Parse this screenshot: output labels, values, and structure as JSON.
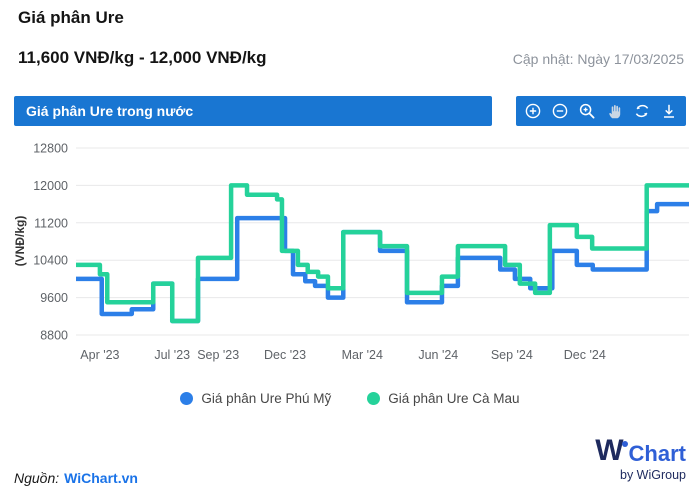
{
  "page": {
    "title": "Giá phân Ure",
    "price_range": "11,600 VNĐ/kg - 12,000 VNĐ/kg",
    "updated": "Cập nhật: Ngày 17/03/2025"
  },
  "panel": {
    "header": "Giá phân Ure trong nước",
    "header_color": "#1976d2",
    "toolbar_tools": [
      "zoom-in",
      "zoom-out",
      "zoom-window",
      "pan",
      "restore",
      "download"
    ]
  },
  "chart_data": {
    "type": "line",
    "step": true,
    "title": "Giá phân Ure trong nước",
    "ylabel": "(VNĐ/kg)",
    "ylim": [
      8800,
      12800
    ],
    "yticks": [
      12800,
      12000,
      11200,
      10400,
      9600,
      8800
    ],
    "grid": "horizontal-only",
    "legend_position": "bottom",
    "xticks": [
      {
        "label": "Apr '23",
        "f": 0.039
      },
      {
        "label": "Jul '23",
        "f": 0.157
      },
      {
        "label": "Sep '23",
        "f": 0.232
      },
      {
        "label": "Dec '23",
        "f": 0.341
      },
      {
        "label": "Mar '24",
        "f": 0.467
      },
      {
        "label": "Jun '24",
        "f": 0.591
      },
      {
        "label": "Sep '24",
        "f": 0.711
      },
      {
        "label": "Dec '24",
        "f": 0.83
      }
    ],
    "series": [
      {
        "name": "Giá phân Ure Phú Mỹ",
        "color": "#2c7fe8",
        "final_value": 11600,
        "points": [
          {
            "date": "2023-03",
            "f": 0.0,
            "v": 10000
          },
          {
            "date": "2023-04",
            "f": 0.042,
            "v": 9250
          },
          {
            "date": "2023-05",
            "f": 0.091,
            "v": 9350
          },
          {
            "date": "2023-06",
            "f": 0.126,
            "v": 9900
          },
          {
            "date": "2023-07",
            "f": 0.157,
            "v": 9100
          },
          {
            "date": "2023-08",
            "f": 0.199,
            "v": 10000
          },
          {
            "date": "2023-10",
            "f": 0.263,
            "v": 11300
          },
          {
            "date": "2023-12",
            "f": 0.341,
            "v": 10600
          },
          {
            "date": "2023-12",
            "f": 0.354,
            "v": 10100
          },
          {
            "date": "2024-01",
            "f": 0.374,
            "v": 9950
          },
          {
            "date": "2024-01",
            "f": 0.39,
            "v": 9850
          },
          {
            "date": "2024-02",
            "f": 0.411,
            "v": 9600
          },
          {
            "date": "2024-02",
            "f": 0.436,
            "v": 11000
          },
          {
            "date": "2024-03",
            "f": 0.496,
            "v": 10600
          },
          {
            "date": "2024-04",
            "f": 0.54,
            "v": 9500
          },
          {
            "date": "2024-06",
            "f": 0.597,
            "v": 9850
          },
          {
            "date": "2024-06",
            "f": 0.623,
            "v": 10450
          },
          {
            "date": "2024-08",
            "f": 0.692,
            "v": 10200
          },
          {
            "date": "2024-09",
            "f": 0.716,
            "v": 10000
          },
          {
            "date": "2024-09",
            "f": 0.741,
            "v": 9800
          },
          {
            "date": "2024-10",
            "f": 0.777,
            "v": 10600
          },
          {
            "date": "2024-11",
            "f": 0.817,
            "v": 10300
          },
          {
            "date": "2024-12",
            "f": 0.843,
            "v": 10200
          },
          {
            "date": "2025-02",
            "f": 0.931,
            "v": 11450
          },
          {
            "date": "2025-03",
            "f": 0.948,
            "v": 11600
          }
        ]
      },
      {
        "name": "Giá phân Ure Cà Mau",
        "color": "#25d29a",
        "final_value": 12000,
        "points": [
          {
            "date": "2023-03",
            "f": 0.0,
            "v": 10300
          },
          {
            "date": "2023-04",
            "f": 0.039,
            "v": 10100
          },
          {
            "date": "2023-04",
            "f": 0.051,
            "v": 9500
          },
          {
            "date": "2023-06",
            "f": 0.126,
            "v": 9900
          },
          {
            "date": "2023-07",
            "f": 0.157,
            "v": 9100
          },
          {
            "date": "2023-08",
            "f": 0.199,
            "v": 10450
          },
          {
            "date": "2023-10",
            "f": 0.253,
            "v": 12000
          },
          {
            "date": "2023-11",
            "f": 0.279,
            "v": 11800
          },
          {
            "date": "2023-12",
            "f": 0.328,
            "v": 11700
          },
          {
            "date": "2023-12",
            "f": 0.336,
            "v": 10600
          },
          {
            "date": "2024-01",
            "f": 0.362,
            "v": 10300
          },
          {
            "date": "2024-01",
            "f": 0.378,
            "v": 10150
          },
          {
            "date": "2024-01",
            "f": 0.395,
            "v": 10050
          },
          {
            "date": "2024-02",
            "f": 0.411,
            "v": 9800
          },
          {
            "date": "2024-02",
            "f": 0.436,
            "v": 11000
          },
          {
            "date": "2024-03",
            "f": 0.496,
            "v": 10700
          },
          {
            "date": "2024-04",
            "f": 0.54,
            "v": 9700
          },
          {
            "date": "2024-06",
            "f": 0.597,
            "v": 10050
          },
          {
            "date": "2024-06",
            "f": 0.623,
            "v": 10700
          },
          {
            "date": "2024-09",
            "f": 0.7,
            "v": 10300
          },
          {
            "date": "2024-09",
            "f": 0.724,
            "v": 9900
          },
          {
            "date": "2024-10",
            "f": 0.749,
            "v": 9700
          },
          {
            "date": "2024-10",
            "f": 0.773,
            "v": 11150
          },
          {
            "date": "2024-11",
            "f": 0.817,
            "v": 10900
          },
          {
            "date": "2024-12",
            "f": 0.842,
            "v": 10650
          },
          {
            "date": "2025-02",
            "f": 0.931,
            "v": 12000
          }
        ]
      }
    ]
  },
  "footer": {
    "source_label": "Nguồn:",
    "source_link": "WiChart.vn",
    "logo_w": "W",
    "logo_chart": "Chart",
    "logo_by": "by WiGroup"
  }
}
